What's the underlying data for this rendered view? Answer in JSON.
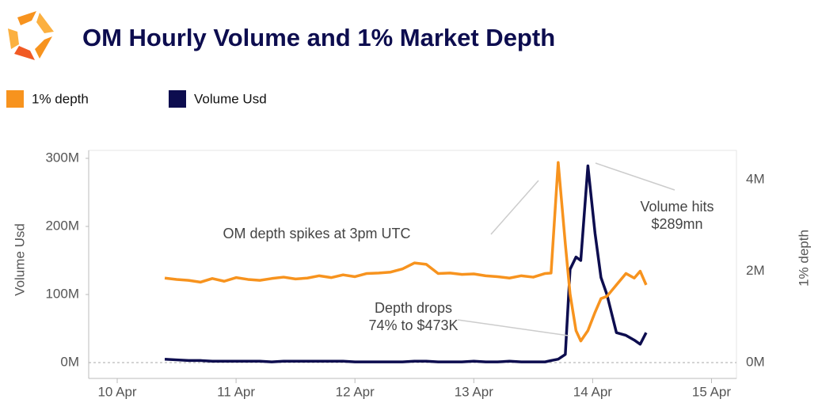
{
  "chart_data": {
    "type": "line",
    "title": "OM Hourly Volume and 1% Market Depth",
    "y_label": "Volume Usd",
    "y2_label": "1% depth",
    "x": [
      10.4,
      10.5,
      10.6,
      10.7,
      10.8,
      10.9,
      11.0,
      11.1,
      11.2,
      11.3,
      11.4,
      11.5,
      11.6,
      11.7,
      11.8,
      11.9,
      12.0,
      12.1,
      12.2,
      12.3,
      12.4,
      12.5,
      12.6,
      12.7,
      12.8,
      12.9,
      13.0,
      13.1,
      13.2,
      13.3,
      13.4,
      13.5,
      13.6,
      13.65,
      13.71,
      13.77,
      13.81,
      13.86,
      13.9,
      13.96,
      14.02,
      14.07,
      14.12,
      14.2,
      14.28,
      14.35,
      14.4,
      14.45
    ],
    "xlim": [
      9.76,
      15.21
    ],
    "xticks": [
      {
        "value": 10,
        "label": "10 Apr"
      },
      {
        "value": 11,
        "label": "11 Apr"
      },
      {
        "value": 12,
        "label": "12 Apr"
      },
      {
        "value": 13,
        "label": "13 Apr"
      },
      {
        "value": 14,
        "label": "14 Apr"
      },
      {
        "value": 15,
        "label": "15 Apr"
      }
    ],
    "ylim": [
      0,
      300
    ],
    "yticks": [
      {
        "value": 0,
        "label": "0M"
      },
      {
        "value": 100,
        "label": "100M"
      },
      {
        "value": 200,
        "label": "200M"
      },
      {
        "value": 300,
        "label": "300M"
      }
    ],
    "y2lim": [
      0,
      4.47
    ],
    "y2ticks": [
      {
        "value": 0,
        "label": "0M"
      },
      {
        "value": 2,
        "label": "2M"
      },
      {
        "value": 4,
        "label": "4M"
      }
    ],
    "series": [
      {
        "name": "1% depth",
        "color": "#f7931e",
        "axis": "y2",
        "values": [
          1.85,
          1.82,
          1.8,
          1.76,
          1.84,
          1.78,
          1.86,
          1.82,
          1.8,
          1.84,
          1.87,
          1.83,
          1.85,
          1.9,
          1.86,
          1.92,
          1.88,
          1.95,
          1.96,
          1.98,
          2.05,
          2.18,
          2.15,
          1.95,
          1.96,
          1.93,
          1.94,
          1.9,
          1.88,
          1.85,
          1.9,
          1.87,
          1.95,
          1.96,
          4.38,
          2.6,
          1.5,
          0.7,
          0.473,
          0.7,
          1.1,
          1.4,
          1.45,
          1.7,
          1.95,
          1.85,
          2.0,
          1.7
        ]
      },
      {
        "name": "Volume Usd",
        "color": "#0d0d4f",
        "values": [
          5,
          4,
          3,
          3,
          2,
          2,
          2,
          2,
          2,
          1,
          2,
          2,
          2,
          2,
          2,
          2,
          1,
          1,
          1,
          1,
          1,
          2,
          2,
          1,
          1,
          1,
          2,
          1,
          1,
          2,
          1,
          1,
          1,
          3,
          5,
          12,
          137,
          155,
          150,
          289,
          190,
          125,
          100,
          44,
          40,
          33,
          27,
          44
        ]
      }
    ],
    "annotations": [
      {
        "lines": [
          "OM depth spikes at 3pm UTC"
        ]
      },
      {
        "lines": [
          "Volume hits",
          "$289mn"
        ]
      },
      {
        "lines": [
          "Depth drops",
          "74% to $473K"
        ]
      }
    ]
  }
}
